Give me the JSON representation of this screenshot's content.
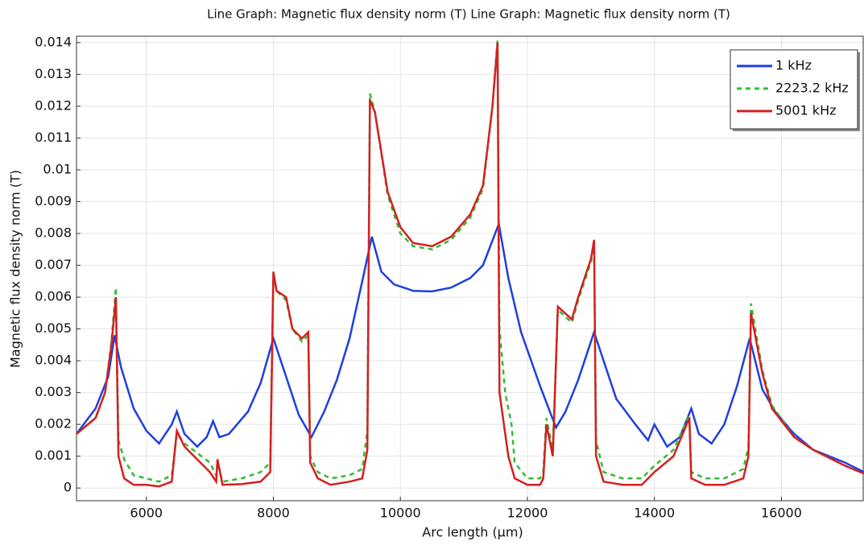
{
  "chart_data": {
    "type": "line",
    "title": "Line Graph: Magnetic flux density norm (T)  Line Graph: Magnetic flux density norm (T)",
    "x_label": "Arc length (µm)",
    "y_label": "Magnetic flux density norm (T)",
    "xlim": [
      4900,
      17300
    ],
    "ylim": [
      -0.0004,
      0.0142
    ],
    "xticks": [
      6000,
      8000,
      10000,
      12000,
      14000,
      16000
    ],
    "yticks": [
      0,
      0.001,
      0.002,
      0.003,
      0.004,
      0.005,
      0.006,
      0.007,
      0.008,
      0.009,
      0.01,
      0.011,
      0.012,
      0.013,
      0.014
    ],
    "grid": true,
    "legend": "upper right",
    "series": [
      {
        "name": "1 kHz",
        "color": "#1f3fe0",
        "dash": "solid",
        "x": [
          4900,
          5200,
          5400,
          5500,
          5600,
          5800,
          6000,
          6200,
          6400,
          6480,
          6600,
          6800,
          6950,
          7050,
          7150,
          7300,
          7600,
          7800,
          8000,
          8200,
          8400,
          8600,
          8800,
          9000,
          9200,
          9400,
          9550,
          9700,
          9900,
          10200,
          10500,
          10800,
          11100,
          11300,
          11550,
          11700,
          11900,
          12200,
          12450,
          12600,
          12800,
          13050,
          13200,
          13400,
          13700,
          13900,
          14000,
          14200,
          14400,
          14580,
          14700,
          14900,
          15100,
          15300,
          15500,
          15700,
          15900,
          16200,
          16500,
          17000,
          17300
        ],
        "values": [
          0.0017,
          0.0025,
          0.0035,
          0.0048,
          0.0038,
          0.0025,
          0.0018,
          0.0014,
          0.002,
          0.0024,
          0.0017,
          0.0013,
          0.0016,
          0.0021,
          0.0016,
          0.0017,
          0.0024,
          0.0033,
          0.0047,
          0.0035,
          0.0023,
          0.0016,
          0.0024,
          0.0034,
          0.0047,
          0.0065,
          0.0079,
          0.0068,
          0.0064,
          0.0062,
          0.00618,
          0.0063,
          0.0066,
          0.007,
          0.0083,
          0.0066,
          0.0049,
          0.0032,
          0.0019,
          0.0024,
          0.0034,
          0.0049,
          0.004,
          0.0028,
          0.002,
          0.0015,
          0.002,
          0.0013,
          0.0016,
          0.0025,
          0.0017,
          0.0014,
          0.002,
          0.0032,
          0.0047,
          0.0031,
          0.0024,
          0.0017,
          0.0012,
          0.0008,
          0.0005
        ]
      },
      {
        "name": "2223.2 kHz",
        "color": "#33bb33",
        "dash": "dashed",
        "x": [
          4900,
          5200,
          5350,
          5450,
          5520,
          5560,
          5650,
          5800,
          6000,
          6200,
          6400,
          6480,
          6600,
          6800,
          7000,
          7100,
          7120,
          7200,
          7500,
          7800,
          7950,
          8000,
          8050,
          8200,
          8300,
          8450,
          8550,
          8580,
          8700,
          8900,
          9200,
          9400,
          9480,
          9520,
          9600,
          9800,
          10000,
          10200,
          10500,
          10800,
          11100,
          11300,
          11450,
          11530,
          11560,
          11650,
          11750,
          11800,
          12000,
          12200,
          12250,
          12300,
          12400,
          12480,
          12700,
          12800,
          13000,
          13050,
          13080,
          13200,
          13500,
          13800,
          14000,
          14300,
          14550,
          14580,
          14800,
          15100,
          15400,
          15480,
          15520,
          15700,
          15850,
          16200,
          16500,
          17000,
          17300
        ],
        "values": [
          0.0017,
          0.0022,
          0.003,
          0.0046,
          0.0063,
          0.0015,
          0.0009,
          0.0004,
          0.0003,
          0.0002,
          0.0004,
          0.0017,
          0.0014,
          0.0011,
          0.0008,
          0.0004,
          0.0008,
          0.0002,
          0.0003,
          0.0005,
          0.0008,
          0.0067,
          0.0062,
          0.0059,
          0.005,
          0.0046,
          0.0048,
          0.001,
          0.0005,
          0.0003,
          0.0004,
          0.0006,
          0.0018,
          0.0124,
          0.0118,
          0.0092,
          0.008,
          0.0076,
          0.0075,
          0.0078,
          0.0085,
          0.0094,
          0.012,
          0.0141,
          0.005,
          0.003,
          0.002,
          0.0008,
          0.0003,
          0.0003,
          0.0005,
          0.0022,
          0.0012,
          0.0056,
          0.0052,
          0.0059,
          0.0071,
          0.0077,
          0.0015,
          0.0005,
          0.0003,
          0.0003,
          0.0007,
          0.0012,
          0.0023,
          0.0005,
          0.0003,
          0.0003,
          0.0006,
          0.0013,
          0.0058,
          0.0037,
          0.0026,
          0.0016,
          0.0012,
          0.0007,
          0.00045
        ]
      },
      {
        "name": "5001 kHz",
        "color": "#d42020",
        "dash": "solid",
        "x": [
          4900,
          5200,
          5350,
          5450,
          5520,
          5560,
          5650,
          5800,
          6000,
          6200,
          6400,
          6480,
          6600,
          6800,
          7000,
          7100,
          7120,
          7200,
          7500,
          7800,
          7950,
          8000,
          8050,
          8200,
          8300,
          8450,
          8550,
          8580,
          8700,
          8900,
          9200,
          9400,
          9480,
          9520,
          9600,
          9800,
          10000,
          10200,
          10500,
          10800,
          11100,
          11300,
          11450,
          11530,
          11560,
          11700,
          11800,
          12000,
          12200,
          12250,
          12300,
          12400,
          12480,
          12700,
          12800,
          13000,
          13050,
          13080,
          13200,
          13500,
          13800,
          14000,
          14300,
          14550,
          14580,
          14800,
          15100,
          15400,
          15480,
          15520,
          15700,
          15850,
          16200,
          16500,
          17000,
          17300
        ],
        "values": [
          0.0017,
          0.0022,
          0.003,
          0.0045,
          0.006,
          0.001,
          0.0003,
          0.0001,
          0.0001,
          5e-05,
          0.0002,
          0.0018,
          0.0013,
          0.0009,
          0.0005,
          0.0002,
          0.0009,
          0.0001,
          0.00012,
          0.0002,
          0.0005,
          0.0068,
          0.0062,
          0.006,
          0.005,
          0.0047,
          0.0049,
          0.0008,
          0.0003,
          0.0001,
          0.0002,
          0.0003,
          0.0012,
          0.0122,
          0.0118,
          0.0093,
          0.0082,
          0.0077,
          0.0076,
          0.0079,
          0.0086,
          0.0095,
          0.012,
          0.014,
          0.003,
          0.001,
          0.0003,
          0.0001,
          0.0001,
          0.0003,
          0.002,
          0.001,
          0.0057,
          0.0053,
          0.006,
          0.0072,
          0.0078,
          0.001,
          0.0002,
          0.0001,
          0.0001,
          0.0005,
          0.001,
          0.0022,
          0.0003,
          0.0001,
          0.0001,
          0.0003,
          0.001,
          0.0055,
          0.0036,
          0.0025,
          0.0016,
          0.0012,
          0.0007,
          0.00045
        ]
      }
    ]
  }
}
